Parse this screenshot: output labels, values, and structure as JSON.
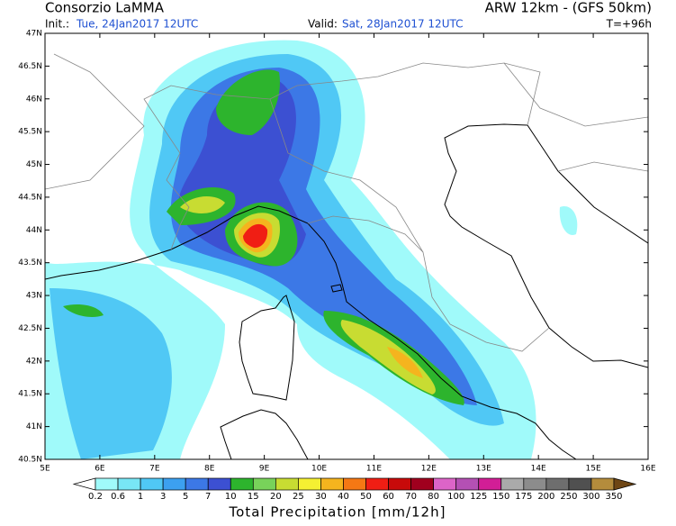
{
  "header": {
    "title": "Consorzio LaMMA",
    "model": "ARW 12km - (GFS 50km)",
    "init_label": "Init.:",
    "init": "Tue, 24Jan2017 12UTC",
    "valid_label": "Valid:",
    "valid": "Sat, 28Jan2017 12UTC",
    "lead": "T=+96h"
  },
  "map": {
    "lat_labels": [
      "47N",
      "46.5N",
      "46N",
      "45.5N",
      "45N",
      "44.5N",
      "44N",
      "43.5N",
      "43N",
      "42.5N",
      "42N",
      "41.5N",
      "41N",
      "40.5N"
    ],
    "lon_labels": [
      "5E",
      "6E",
      "7E",
      "8E",
      "9E",
      "10E",
      "11E",
      "12E",
      "13E",
      "14E",
      "15E",
      "16E"
    ]
  },
  "colorbar": {
    "labels": [
      0.2,
      0.6,
      1,
      3,
      5,
      7,
      10,
      15,
      20,
      25,
      30,
      40,
      50,
      60,
      70,
      80,
      100,
      125,
      150,
      175,
      200,
      250,
      300,
      350
    ],
    "colors": [
      "#ffffff",
      "#a0fafa",
      "#78e6f5",
      "#50c8f5",
      "#3ca0f0",
      "#3c78e6",
      "#3c50d2",
      "#2db42d",
      "#78d25a",
      "#c8dc32",
      "#f5f032",
      "#f5b41e",
      "#f57814",
      "#f01e14",
      "#c80a0a",
      "#a0001e",
      "#dc64c8",
      "#b450b4",
      "#d21e96",
      "#aaaaaa",
      "#8c8c8c",
      "#6e6e6e",
      "#505050",
      "#b48c3c",
      "#966428",
      "#6e4614"
    ],
    "title": "Total Precipitation [mm/12h]"
  }
}
